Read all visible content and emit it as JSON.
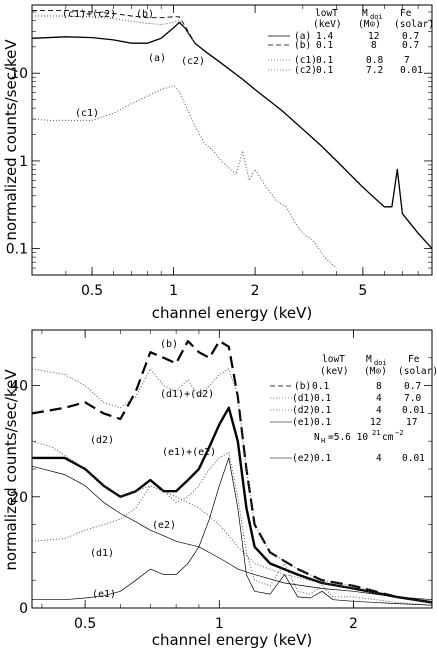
{
  "chart_data": [
    {
      "type": "line",
      "panel": "top",
      "xlabel": "channel energy (keV)",
      "ylabel": "normalized counts/sec/keV",
      "x_scale": "log",
      "y_scale": "log",
      "xlim": [
        0.3,
        9.0
      ],
      "ylim": [
        0.05,
        60
      ],
      "x_ticks": [
        0.5,
        1,
        2,
        5
      ],
      "x_tick_labels": [
        "0.5",
        "1",
        "2",
        "5"
      ],
      "y_ticks": [
        0.1,
        1,
        10
      ],
      "y_tick_labels": [
        "0.1",
        "1",
        "10"
      ],
      "legend": {
        "columns": [
          "lowT",
          "M_dot",
          "Fe"
        ],
        "header_line1": [
          "lowT",
          "M",
          "Fe"
        ],
        "header_sub": "doi",
        "header_line2": [
          "(keV)",
          "(M⊙)",
          "(solar)"
        ],
        "rows": [
          {
            "label": "(a)",
            "lowT": "1.4",
            "Mdot": "12",
            "Fe": "0.7",
            "style": "solid"
          },
          {
            "label": "(b)",
            "lowT": "0.1",
            "Mdot": "8",
            "Fe": "0.7",
            "style": "dashed"
          },
          {
            "label": "(c1)",
            "lowT": "0.1",
            "Mdot": "0.8",
            "Fe": "7",
            "style": "dotted"
          },
          {
            "label": "(c2)",
            "lowT": "0.1",
            "Mdot": "7.2",
            "Fe": "0.01",
            "style": "dotted"
          }
        ]
      },
      "annotations": [
        "(c1)+(c2)",
        "(b)",
        "(a)",
        "(c2)",
        "(c1)"
      ],
      "series": [
        {
          "name": "(a)",
          "style": "solid",
          "x": [
            0.3,
            0.4,
            0.5,
            0.6,
            0.7,
            0.8,
            0.9,
            1.0,
            1.05,
            1.1,
            1.2,
            1.3,
            1.5,
            1.8,
            2.0,
            2.5,
            3.0,
            3.5,
            4.0,
            5.0,
            6.0,
            6.4,
            6.7,
            7.0,
            8.0,
            9.0
          ],
          "y": [
            25,
            26,
            25.5,
            24,
            22,
            22,
            25,
            33,
            38,
            33,
            22,
            18,
            13,
            8.5,
            6.5,
            3.8,
            2.3,
            1.5,
            1.0,
            0.5,
            0.3,
            0.3,
            0.8,
            0.25,
            0.15,
            0.1
          ]
        },
        {
          "name": "(b)",
          "style": "dashed",
          "x": [
            0.3,
            0.4,
            0.5,
            0.6,
            0.7,
            0.8,
            0.9,
            1.0,
            1.05,
            1.1,
            1.2,
            1.3,
            1.5,
            1.8,
            2.0,
            2.5,
            3.0,
            3.5,
            4.0,
            5.0,
            6.0,
            6.4,
            6.7,
            7.0,
            8.0,
            9.0
          ],
          "y": [
            52,
            52,
            50,
            48,
            45,
            43,
            43,
            44,
            44,
            35,
            22,
            18,
            13,
            8.5,
            6.5,
            3.8,
            2.3,
            1.5,
            1.0,
            0.5,
            0.3,
            0.3,
            0.8,
            0.25,
            0.15,
            0.1
          ]
        },
        {
          "name": "(c1)+(c2)",
          "style": "dotted",
          "x": [
            0.3,
            0.4,
            0.5,
            0.6,
            0.7,
            0.8,
            0.9,
            1.0,
            1.05,
            1.1,
            1.2
          ],
          "y": [
            45,
            45,
            44,
            42,
            39,
            37,
            36,
            38,
            40,
            33,
            22
          ]
        },
        {
          "name": "(c1)",
          "style": "dotted",
          "x": [
            0.3,
            0.35,
            0.4,
            0.5,
            0.6,
            0.7,
            0.8,
            0.9,
            1.0,
            1.05,
            1.1,
            1.2,
            1.3,
            1.4,
            1.5,
            1.7,
            1.8,
            1.9,
            2.0,
            2.2,
            2.4,
            2.6,
            2.8,
            3.0,
            3.3,
            3.6,
            4.0
          ],
          "y": [
            3,
            2.9,
            2.9,
            2.9,
            3.5,
            4.5,
            5.5,
            6.5,
            7.2,
            6.2,
            4.5,
            2.5,
            1.6,
            1.3,
            1.0,
            0.7,
            1.3,
            0.6,
            0.8,
            0.5,
            0.35,
            0.3,
            0.2,
            0.15,
            0.12,
            0.08,
            0.06
          ]
        }
      ]
    },
    {
      "type": "line",
      "panel": "bottom",
      "xlabel": "channel energy (keV)",
      "ylabel": "normalized counts/sec/keV",
      "x_scale": "log",
      "y_scale": "linear",
      "xlim": [
        0.38,
        3.0
      ],
      "ylim": [
        0,
        50
      ],
      "x_ticks": [
        0.5,
        1,
        2
      ],
      "x_tick_labels": [
        "0.5",
        "1",
        "2"
      ],
      "y_ticks": [
        0,
        20,
        40
      ],
      "y_tick_labels": [
        "0",
        "20",
        "40"
      ],
      "legend": {
        "header_line1": [
          "lowT",
          "M",
          "Fe"
        ],
        "header_sub": "doi",
        "header_line2": [
          "(keV)",
          "(M⊙)",
          "(solar)"
        ],
        "rows": [
          {
            "label": "(b)",
            "lowT": "0.1",
            "Mdot": "8",
            "Fe": "0.7",
            "style": "dashed"
          },
          {
            "label": "(d1)",
            "lowT": "0.1",
            "Mdot": "4",
            "Fe": "7.0",
            "style": "dotted"
          },
          {
            "label": "(d2)",
            "lowT": "0.1",
            "Mdot": "4",
            "Fe": "0.01",
            "style": "dotted"
          },
          {
            "label": "(e1)",
            "lowT": "0.1",
            "Mdot": "12",
            "Fe": "17",
            "style": "solid"
          },
          {
            "label": "(e2)",
            "lowT": "0.1",
            "Mdot": "4",
            "Fe": "0.01",
            "style": "solid"
          }
        ],
        "nh_note": "N",
        "nh_sub": "H",
        "nh_value": "=5.6 10",
        "nh_exp": "21",
        "nh_unit": "cm",
        "nh_unit_exp": "−2"
      },
      "annotations": [
        "(b)",
        "(d1)+(d2)",
        "(d2)",
        "(e1)+(e2)",
        "(e2)",
        "(d1)",
        "(e1)"
      ],
      "series": [
        {
          "name": "(b)",
          "style": "long-dashed",
          "x": [
            0.38,
            0.45,
            0.5,
            0.55,
            0.6,
            0.65,
            0.7,
            0.75,
            0.8,
            0.85,
            0.9,
            0.95,
            1.0,
            1.05,
            1.1,
            1.15,
            1.2,
            1.3,
            1.5,
            1.7,
            2.0,
            2.5,
            3.0
          ],
          "y": [
            35,
            36,
            37,
            35,
            34,
            39,
            46,
            45,
            44,
            48,
            46,
            45,
            48,
            47,
            38,
            25,
            15,
            10,
            7,
            5,
            4,
            2,
            1
          ]
        },
        {
          "name": "(d1)+(d2)",
          "style": "dotted",
          "x": [
            0.38,
            0.45,
            0.5,
            0.55,
            0.6,
            0.65,
            0.7,
            0.75,
            0.8,
            0.85,
            0.9,
            0.95,
            1.0,
            1.05,
            1.1,
            1.15,
            1.2,
            1.3,
            1.5,
            1.7,
            2.0,
            2.5,
            3.0
          ],
          "y": [
            43,
            42,
            40,
            37,
            36,
            38,
            43,
            40,
            39,
            41,
            38,
            40,
            42,
            43,
            38,
            25,
            15,
            10,
            7,
            5,
            4,
            2,
            1
          ]
        },
        {
          "name": "(e1)+(e2)",
          "style": "solid-thick",
          "x": [
            0.38,
            0.45,
            0.5,
            0.55,
            0.6,
            0.65,
            0.7,
            0.75,
            0.8,
            0.85,
            0.9,
            0.95,
            1.0,
            1.05,
            1.1,
            1.15,
            1.2,
            1.3,
            1.5,
            1.7,
            2.0,
            2.5,
            3.0
          ],
          "y": [
            27,
            27,
            25,
            22,
            20,
            21,
            23,
            21,
            21,
            23,
            25,
            29,
            33,
            36,
            30,
            18,
            11,
            8,
            6,
            4.5,
            3.5,
            2,
            1
          ]
        },
        {
          "name": "(d2)",
          "style": "dotted",
          "x": [
            0.38,
            0.42,
            0.48,
            0.55,
            0.6,
            0.65,
            0.7,
            0.75,
            0.8,
            0.9,
            1.0,
            1.05,
            1.1,
            1.2,
            1.4,
            1.7,
            2.0,
            2.5,
            3.0
          ],
          "y": [
            30,
            29,
            26,
            22,
            20,
            21,
            22,
            21,
            20,
            18,
            15,
            13,
            11,
            8,
            6,
            4.5,
            3.5,
            2,
            1
          ]
        },
        {
          "name": "(e2)",
          "style": "solid-thin",
          "x": [
            0.38,
            0.45,
            0.5,
            0.55,
            0.6,
            0.65,
            0.7,
            0.75,
            0.8,
            0.9,
            1.0,
            1.05,
            1.1,
            1.2,
            1.4,
            1.7,
            2.0,
            2.5,
            3.0
          ],
          "y": [
            25.5,
            24,
            22,
            19,
            17,
            15.5,
            14,
            13,
            12,
            11,
            9,
            8,
            7,
            6,
            4.5,
            3.5,
            3,
            2,
            1.5
          ]
        },
        {
          "name": "(d1)",
          "style": "dotted",
          "x": [
            0.38,
            0.45,
            0.5,
            0.55,
            0.6,
            0.65,
            0.7,
            0.75,
            0.8,
            0.85,
            0.9,
            0.95,
            1.0,
            1.05,
            1.1,
            1.15,
            1.2,
            1.3,
            1.4,
            1.5,
            1.6,
            1.7,
            1.8,
            2.0,
            2.5,
            3.0
          ],
          "y": [
            12,
            12.5,
            14,
            15,
            16,
            18,
            22,
            21,
            19,
            20,
            22,
            25,
            27,
            28,
            20,
            10,
            5,
            4,
            8,
            3,
            2.5,
            4,
            2,
            2,
            1,
            0.5
          ]
        },
        {
          "name": "(e1)",
          "style": "solid-thin",
          "x": [
            0.38,
            0.45,
            0.5,
            0.55,
            0.6,
            0.65,
            0.7,
            0.75,
            0.8,
            0.85,
            0.9,
            0.95,
            1.0,
            1.05,
            1.1,
            1.15,
            1.2,
            1.3,
            1.4,
            1.5,
            1.6,
            1.7,
            1.8,
            2.0,
            2.5,
            3.0
          ],
          "y": [
            1.5,
            1.5,
            1.8,
            2.2,
            3,
            5,
            7,
            6,
            6,
            8,
            11,
            16,
            22,
            27,
            18,
            6,
            3,
            2.5,
            6,
            2,
            1.8,
            3,
            1.5,
            1.2,
            0.8,
            0.5
          ]
        }
      ]
    }
  ]
}
